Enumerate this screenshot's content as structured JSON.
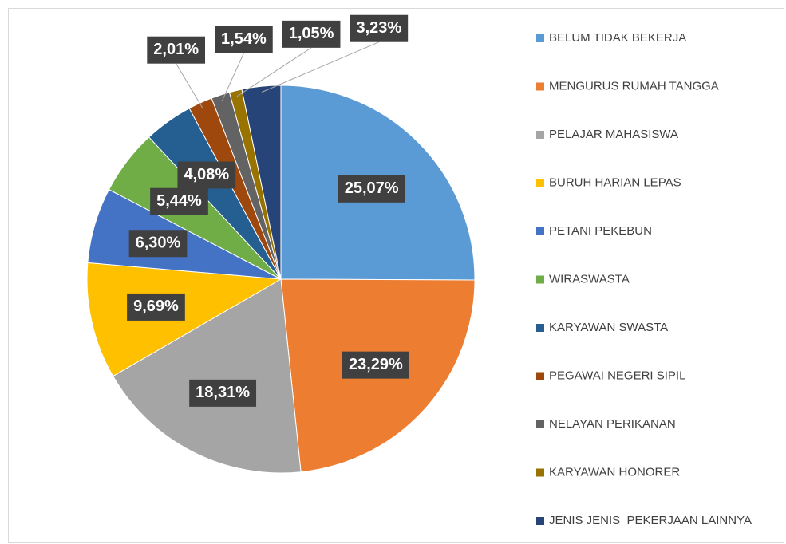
{
  "chart_data": {
    "type": "pie",
    "categories": [
      "BELUM TIDAK BEKERJA",
      "MENGURUS RUMAH TANGGA",
      "PELAJAR MAHASISWA",
      "BURUH HARIAN LEPAS",
      "PETANI PEKEBUN",
      "WIRASWASTA",
      "KARYAWAN SWASTA",
      "PEGAWAI NEGERI SIPIL",
      "NELAYAN PERIKANAN",
      "KARYAWAN HONORER",
      "JENIS JENIS  PEKERJAAN LAINNYA"
    ],
    "values": [
      25.07,
      23.29,
      18.31,
      9.69,
      6.3,
      5.44,
      4.08,
      2.01,
      1.54,
      1.05,
      3.23
    ],
    "value_labels": [
      "25,07%",
      "23,29%",
      "18,31%",
      "9,69%",
      "6,30%",
      "5,44%",
      "4,08%",
      "2,01%",
      "1,54%",
      "1,05%",
      "3,23%"
    ],
    "colors": [
      "#5b9bd5",
      "#ed7d31",
      "#a5a5a5",
      "#ffc000",
      "#4472c4",
      "#70ad47",
      "#255e91",
      "#9e480e",
      "#636363",
      "#997300",
      "#264478"
    ],
    "legend": "right"
  }
}
